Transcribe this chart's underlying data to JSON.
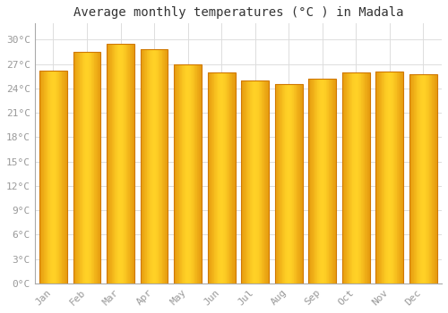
{
  "title": "Average monthly temperatures (°C ) in Madala",
  "months": [
    "Jan",
    "Feb",
    "Mar",
    "Apr",
    "May",
    "Jun",
    "Jul",
    "Aug",
    "Sep",
    "Oct",
    "Nov",
    "Dec"
  ],
  "values": [
    26.2,
    28.5,
    29.5,
    28.8,
    27.0,
    26.0,
    25.0,
    24.5,
    25.2,
    26.0,
    26.1,
    25.8
  ],
  "bar_color_center": "#FFD040",
  "bar_color_edge": "#E8900A",
  "bar_color_dark": "#D07800",
  "background_color": "#FFFFFF",
  "plot_bg_color": "#FFFFFF",
  "grid_color": "#DDDDDD",
  "yticks": [
    0,
    3,
    6,
    9,
    12,
    15,
    18,
    21,
    24,
    27,
    30
  ],
  "ylim": [
    0,
    32
  ],
  "title_fontsize": 10,
  "tick_fontsize": 8,
  "font_family": "monospace",
  "tick_color": "#999999",
  "title_color": "#333333",
  "bar_edge_linewidth": 0.8
}
